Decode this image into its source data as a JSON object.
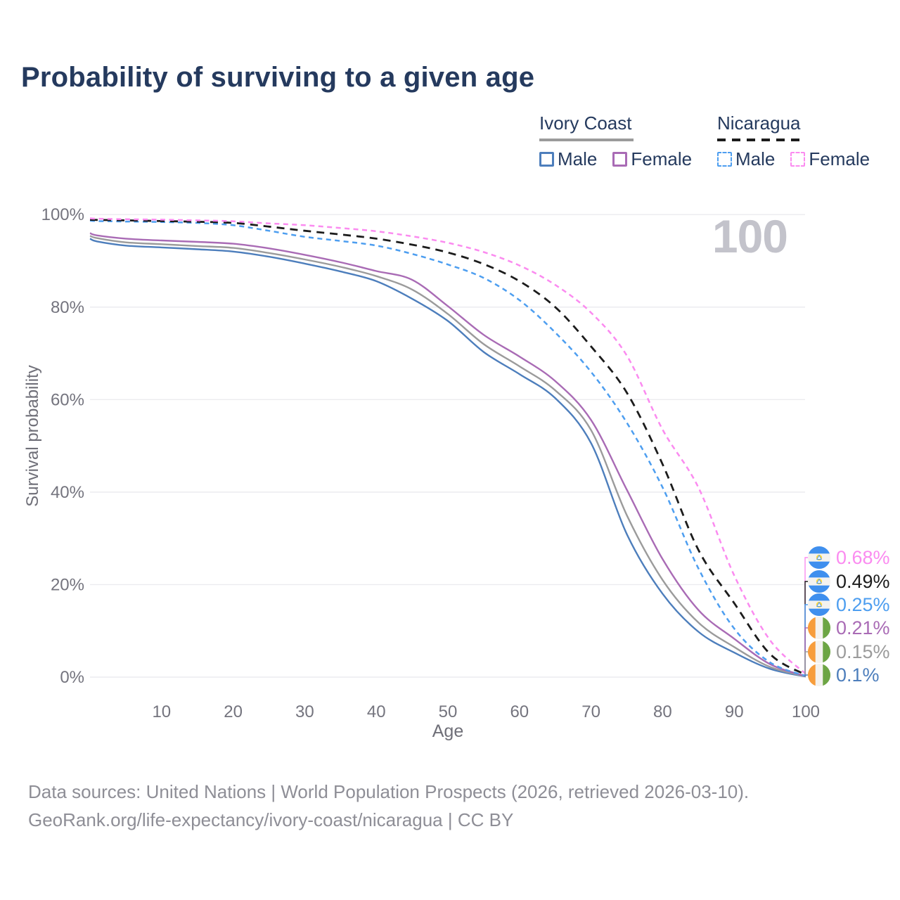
{
  "title": "Probability of surviving to a given age",
  "watermark_age": "100",
  "legend": {
    "groups": [
      {
        "label": "Ivory Coast",
        "line_style": "solid",
        "line_color": "#9b9b9b",
        "items": [
          {
            "label": "Male",
            "color": "#4d7ebc"
          },
          {
            "label": "Female",
            "color": "#a96bb5"
          }
        ]
      },
      {
        "label": "Nicaragua",
        "line_style": "dashed",
        "line_color": "#1c1c1c",
        "items": [
          {
            "label": "Male",
            "color": "#4d9ef0"
          },
          {
            "label": "Female",
            "color": "#fb8bf0"
          }
        ]
      }
    ]
  },
  "y_axis": {
    "label": "Survival probability",
    "ticks": [
      "0%",
      "20%",
      "40%",
      "60%",
      "80%",
      "100%"
    ],
    "tick_values": [
      0,
      20,
      40,
      60,
      80,
      100
    ]
  },
  "x_axis": {
    "label": "Age",
    "ticks": [
      10,
      20,
      30,
      40,
      50,
      60,
      70,
      80,
      90,
      100
    ]
  },
  "end_labels": [
    {
      "value": "0.68%",
      "color": "#fb8bf0",
      "flag": "nicaragua"
    },
    {
      "value": "0.49%",
      "color": "#1c1c1c",
      "flag": "nicaragua"
    },
    {
      "value": "0.25%",
      "color": "#4d9ef0",
      "flag": "nicaragua"
    },
    {
      "value": "0.21%",
      "color": "#a96bb5",
      "flag": "ivory-coast"
    },
    {
      "value": "0.15%",
      "color": "#9b9b9b",
      "flag": "ivory-coast"
    },
    {
      "value": "0.1%",
      "color": "#4d7ebc",
      "flag": "ivory-coast"
    }
  ],
  "footer": {
    "line1": "Data sources: United Nations | World Population Prospects (2026, retrieved 2026-03-10).",
    "line2": "GeoRank.org/life-expectancy/ivory-coast/nicaragua | CC BY"
  },
  "chart_data": {
    "type": "line",
    "title": "Probability of surviving to a given age",
    "xlabel": "Age",
    "ylabel": "Survival probability",
    "xlim": [
      0,
      100
    ],
    "ylim": [
      0,
      100
    ],
    "grid": "horizontal",
    "legend_position": "top-right",
    "x": [
      0,
      1,
      5,
      10,
      15,
      20,
      25,
      30,
      35,
      40,
      45,
      50,
      55,
      60,
      65,
      70,
      75,
      80,
      85,
      90,
      95,
      100
    ],
    "series": [
      {
        "name": "Ivory Coast Male",
        "country": "Ivory Coast",
        "sex": "male",
        "style": "solid",
        "color": "#4d7ebc",
        "width": 2.4,
        "values": [
          94.8,
          94.2,
          93.3,
          92.9,
          92.5,
          92.0,
          90.9,
          89.4,
          87.7,
          85.6,
          81.8,
          77.0,
          70.3,
          65.5,
          60.3,
          50.6,
          30.9,
          18.0,
          9.8,
          5.3,
          1.8,
          0.1
        ]
      },
      {
        "name": "Ivory Coast Both sexes",
        "country": "Ivory Coast",
        "sex": "all",
        "style": "solid",
        "color": "#9b9b9b",
        "width": 2.4,
        "values": [
          95.4,
          94.9,
          94.0,
          93.6,
          93.2,
          92.8,
          91.7,
          90.3,
          88.7,
          86.7,
          83.8,
          78.5,
          72.0,
          67.2,
          62.0,
          53.4,
          35.0,
          21.0,
          11.8,
          6.5,
          2.2,
          0.15
        ]
      },
      {
        "name": "Ivory Coast Female",
        "country": "Ivory Coast",
        "sex": "female",
        "style": "solid",
        "color": "#a96bb5",
        "width": 2.4,
        "values": [
          96.0,
          95.5,
          94.8,
          94.4,
          94.1,
          93.7,
          92.7,
          91.3,
          89.7,
          87.8,
          85.9,
          80.2,
          74.0,
          69.3,
          64.0,
          55.6,
          40.5,
          25.5,
          14.5,
          8.3,
          2.8,
          0.21
        ]
      },
      {
        "name": "Nicaragua Male",
        "country": "Nicaragua",
        "sex": "male",
        "style": "dashed",
        "color": "#4d9ef0",
        "width": 2.5,
        "values": [
          98.7,
          98.6,
          98.5,
          98.4,
          98.2,
          97.7,
          96.5,
          95.2,
          94.3,
          93.3,
          91.5,
          89.2,
          86.3,
          81.5,
          74.5,
          66.0,
          55.0,
          41.0,
          23.5,
          10.5,
          3.2,
          0.25
        ]
      },
      {
        "name": "Nicaragua Both sexes",
        "country": "Nicaragua",
        "sex": "all",
        "style": "dashed",
        "color": "#1c1c1c",
        "width": 2.8,
        "values": [
          98.9,
          98.85,
          98.75,
          98.6,
          98.45,
          98.2,
          97.4,
          96.5,
          95.7,
          94.8,
          93.5,
          91.8,
          89.3,
          85.6,
          80.0,
          71.5,
          61.5,
          46.0,
          27.5,
          16.0,
          5.0,
          0.49
        ]
      },
      {
        "name": "Nicaragua Female",
        "country": "Nicaragua",
        "sex": "female",
        "style": "dashed",
        "color": "#fb8bf0",
        "width": 2.5,
        "values": [
          99.2,
          99.1,
          99.0,
          98.9,
          98.75,
          98.55,
          98.1,
          97.7,
          97.1,
          96.4,
          95.3,
          93.9,
          91.9,
          89.0,
          84.8,
          78.8,
          69.5,
          53.5,
          41.0,
          22.0,
          8.0,
          0.68
        ]
      }
    ],
    "values_at_age_100": {
      "Nicaragua Female": 0.68,
      "Nicaragua Both sexes": 0.49,
      "Nicaragua Male": 0.25,
      "Ivory Coast Female": 0.21,
      "Ivory Coast Both sexes": 0.15,
      "Ivory Coast Male": 0.1
    }
  },
  "colors": {
    "title": "#253a5e",
    "axis_text": "#74747e",
    "gridline": "#ebebef",
    "watermark": "#c3c3cb",
    "footer_text": "#8e8e96"
  }
}
